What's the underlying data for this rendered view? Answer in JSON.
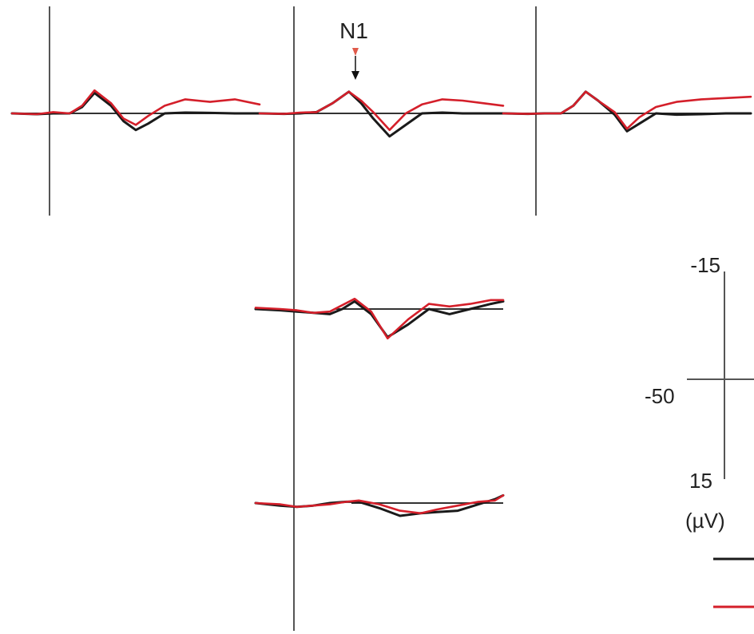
{
  "colors": {
    "series_black": "#1a1a1a",
    "series_red": "#d41f2a",
    "axis": "#555555",
    "baseline": "#333333",
    "n1_arrow_red": "#e05a4a",
    "n1_arrow_black": "#111111"
  },
  "peak_label": "N1",
  "scale_bar": {
    "y_top_label": "-15",
    "x_left_label": "-50",
    "y_bottom_label": "15",
    "unit_label": "(µV)"
  },
  "chart_data": {
    "type": "line",
    "layout": "topographic grid of ERP waveforms",
    "x_unit": "ms",
    "y_unit": "µV",
    "y_axis_inverted": true,
    "xlim": [
      -50,
      250
    ],
    "ylim": [
      -15,
      15
    ],
    "annotation": "N1",
    "legend": [
      {
        "color": "#1a1a1a"
      },
      {
        "color": "#d41f2a"
      }
    ],
    "panels": [
      {
        "id": "top-left",
        "series": [
          {
            "color": "#1a1a1a",
            "x": [
              -50,
              -20,
              0,
              20,
              35,
              50,
              70,
              85,
              100,
              115,
              135,
              160,
              190,
              220,
              250
            ],
            "y": [
              0,
              0.3,
              0,
              0,
              -2.5,
              -8,
              -3,
              3,
              6.5,
              4,
              0,
              -0.3,
              -0.2,
              0,
              0
            ]
          },
          {
            "color": "#d41f2a",
            "x": [
              -50,
              -20,
              0,
              20,
              35,
              50,
              70,
              85,
              100,
              115,
              135,
              160,
              190,
              220,
              250
            ],
            "y": [
              0,
              0.3,
              -0.5,
              0,
              -3,
              -9,
              -4,
              2,
              4.5,
              1,
              -3,
              -5.5,
              -4.5,
              -5.5,
              -3.5
            ]
          }
        ]
      },
      {
        "id": "top-center",
        "series": [
          {
            "color": "#1a1a1a",
            "x": [
              -50,
              -20,
              0,
              20,
              40,
              60,
              75,
              90,
              110,
              130,
              150,
              175,
              200,
              225,
              250
            ],
            "y": [
              0,
              0.2,
              0,
              -0.5,
              -4,
              -8.5,
              -4,
              2,
              9,
              4.5,
              0,
              -0.3,
              0,
              0,
              0
            ]
          },
          {
            "color": "#d41f2a",
            "x": [
              -50,
              -20,
              0,
              20,
              40,
              60,
              75,
              90,
              110,
              130,
              150,
              175,
              200,
              225,
              250
            ],
            "y": [
              0,
              0.2,
              -0.3,
              -0.5,
              -4,
              -8.5,
              -5,
              -0.5,
              6.5,
              0,
              -3.5,
              -5.5,
              -5,
              -4,
              -3
            ]
          }
        ]
      },
      {
        "id": "top-right",
        "series": [
          {
            "color": "#1a1a1a",
            "x": [
              -50,
              -20,
              0,
              20,
              35,
              50,
              65,
              85,
              100,
              115,
              135,
              160,
              190,
              220,
              250
            ],
            "y": [
              0,
              0.2,
              0,
              0,
              -3,
              -8.5,
              -5,
              0.5,
              7,
              4,
              0,
              0.5,
              0.3,
              0,
              0
            ]
          },
          {
            "color": "#d41f2a",
            "x": [
              -50,
              -20,
              0,
              20,
              35,
              50,
              65,
              85,
              100,
              115,
              135,
              160,
              190,
              220,
              250
            ],
            "y": [
              0,
              0.2,
              0,
              0,
              -3,
              -8.5,
              -5,
              -0.5,
              6,
              1.5,
              -2.5,
              -4.5,
              -5.5,
              -6,
              -6.5
            ]
          }
        ]
      },
      {
        "id": "middle",
        "series": [
          {
            "color": "#1a1a1a",
            "x": [
              -50,
              -20,
              0,
              20,
              40,
              55,
              70,
              90,
              110,
              135,
              160,
              185,
              210,
              235,
              250
            ],
            "y": [
              0,
              0.5,
              1,
              1.5,
              2,
              0,
              -3,
              2,
              11,
              6,
              0,
              2,
              0,
              -2,
              -3
            ]
          },
          {
            "color": "#d41f2a",
            "x": [
              -50,
              -20,
              0,
              20,
              40,
              55,
              70,
              90,
              110,
              135,
              160,
              185,
              210,
              235,
              250
            ],
            "y": [
              -0.5,
              0,
              0.5,
              1.5,
              1,
              -1.5,
              -4,
              1,
              11.5,
              4,
              -2,
              -1,
              -2,
              -3.5,
              -3.5
            ]
          }
        ]
      },
      {
        "id": "bottom",
        "series": [
          {
            "color": "#1a1a1a",
            "x": [
              -50,
              -20,
              0,
              20,
              40,
              60,
              75,
              100,
              125,
              150,
              170,
              195,
              220,
              240,
              250
            ],
            "y": [
              0,
              1,
              1.5,
              1,
              0,
              -0.5,
              -0.5,
              2,
              5,
              4,
              3.5,
              3,
              0.5,
              -1.5,
              -3
            ]
          },
          {
            "color": "#d41f2a",
            "x": [
              -50,
              -20,
              0,
              20,
              40,
              60,
              75,
              100,
              125,
              150,
              170,
              195,
              220,
              240,
              250
            ],
            "y": [
              0,
              0.5,
              1.5,
              1,
              0.5,
              -0.5,
              -1,
              0.5,
              3,
              4,
              2.5,
              1,
              -0.5,
              -1,
              -3
            ]
          }
        ]
      }
    ]
  }
}
